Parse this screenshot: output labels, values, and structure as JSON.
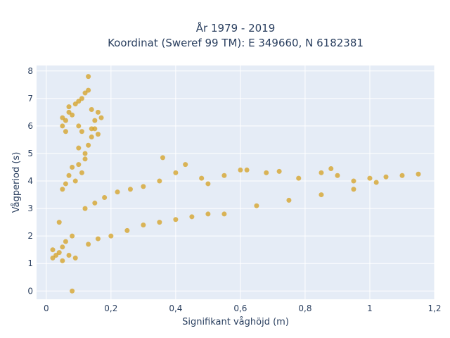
{
  "chart_data": {
    "type": "scatter",
    "title_lines": [
      "År 1979 - 2019",
      "Koordinat (Sweref 99 TM): E 349660, N 6182381"
    ],
    "xlabel": "Signifikant våghöjd (m)",
    "ylabel": "Vågperiod (s)",
    "xlim": [
      -0.03,
      1.2
    ],
    "ylim": [
      -0.3,
      8.2
    ],
    "xticks": [
      0,
      0.2,
      0.4,
      0.6,
      0.8,
      1,
      1.2
    ],
    "xtick_labels": [
      "0",
      "0,2",
      "0,4",
      "0,6",
      "0,8",
      "1",
      "1,2"
    ],
    "yticks": [
      0,
      1,
      2,
      3,
      4,
      5,
      6,
      7,
      8
    ],
    "ytick_labels": [
      "0",
      "1",
      "2",
      "3",
      "4",
      "5",
      "6",
      "7",
      "8"
    ],
    "grid": true,
    "marker_color": "#d4a020",
    "plot_bgcolor": "#e5ecf6",
    "points": [
      [
        0.02,
        1.2
      ],
      [
        0.02,
        1.5
      ],
      [
        0.03,
        1.3
      ],
      [
        0.04,
        1.4
      ],
      [
        0.05,
        1.6
      ],
      [
        0.05,
        1.1
      ],
      [
        0.06,
        1.8
      ],
      [
        0.07,
        1.3
      ],
      [
        0.08,
        2.0
      ],
      [
        0.09,
        1.2
      ],
      [
        0.08,
        0.0
      ],
      [
        0.04,
        2.5
      ],
      [
        0.06,
        3.9
      ],
      [
        0.05,
        3.7
      ],
      [
        0.07,
        4.2
      ],
      [
        0.08,
        4.5
      ],
      [
        0.09,
        4.0
      ],
      [
        0.1,
        4.6
      ],
      [
        0.11,
        4.3
      ],
      [
        0.12,
        5.0
      ],
      [
        0.13,
        5.3
      ],
      [
        0.14,
        5.6
      ],
      [
        0.15,
        5.9
      ],
      [
        0.12,
        4.8
      ],
      [
        0.1,
        5.2
      ],
      [
        0.05,
        6.0
      ],
      [
        0.05,
        6.3
      ],
      [
        0.06,
        6.2
      ],
      [
        0.07,
        6.5
      ],
      [
        0.08,
        6.4
      ],
      [
        0.09,
        6.8
      ],
      [
        0.1,
        6.9
      ],
      [
        0.11,
        7.0
      ],
      [
        0.12,
        7.2
      ],
      [
        0.13,
        7.3
      ],
      [
        0.13,
        7.8
      ],
      [
        0.14,
        6.6
      ],
      [
        0.15,
        6.2
      ],
      [
        0.16,
        6.5
      ],
      [
        0.17,
        6.3
      ],
      [
        0.06,
        5.8
      ],
      [
        0.07,
        6.7
      ],
      [
        0.1,
        6.0
      ],
      [
        0.11,
        5.8
      ],
      [
        0.14,
        5.9
      ],
      [
        0.16,
        5.7
      ],
      [
        0.12,
        3.0
      ],
      [
        0.15,
        3.2
      ],
      [
        0.18,
        3.4
      ],
      [
        0.22,
        3.6
      ],
      [
        0.26,
        3.7
      ],
      [
        0.3,
        3.8
      ],
      [
        0.35,
        4.0
      ],
      [
        0.4,
        4.3
      ],
      [
        0.36,
        4.85
      ],
      [
        0.43,
        4.6
      ],
      [
        0.48,
        4.1
      ],
      [
        0.5,
        3.9
      ],
      [
        0.55,
        4.2
      ],
      [
        0.6,
        4.4
      ],
      [
        0.62,
        4.4
      ],
      [
        0.68,
        4.3
      ],
      [
        0.72,
        4.35
      ],
      [
        0.78,
        4.1
      ],
      [
        0.85,
        4.3
      ],
      [
        0.88,
        4.45
      ],
      [
        0.9,
        4.2
      ],
      [
        0.95,
        4.0
      ],
      [
        1.0,
        4.1
      ],
      [
        1.05,
        4.15
      ],
      [
        1.1,
        4.2
      ],
      [
        1.15,
        4.25
      ],
      [
        1.02,
        3.95
      ],
      [
        0.55,
        2.8
      ],
      [
        0.65,
        3.1
      ],
      [
        0.75,
        3.3
      ],
      [
        0.85,
        3.5
      ],
      [
        0.95,
        3.7
      ],
      [
        0.13,
        1.7
      ],
      [
        0.16,
        1.9
      ],
      [
        0.2,
        2.0
      ],
      [
        0.25,
        2.2
      ],
      [
        0.3,
        2.4
      ],
      [
        0.35,
        2.5
      ],
      [
        0.4,
        2.6
      ],
      [
        0.45,
        2.7
      ],
      [
        0.5,
        2.8
      ]
    ]
  }
}
